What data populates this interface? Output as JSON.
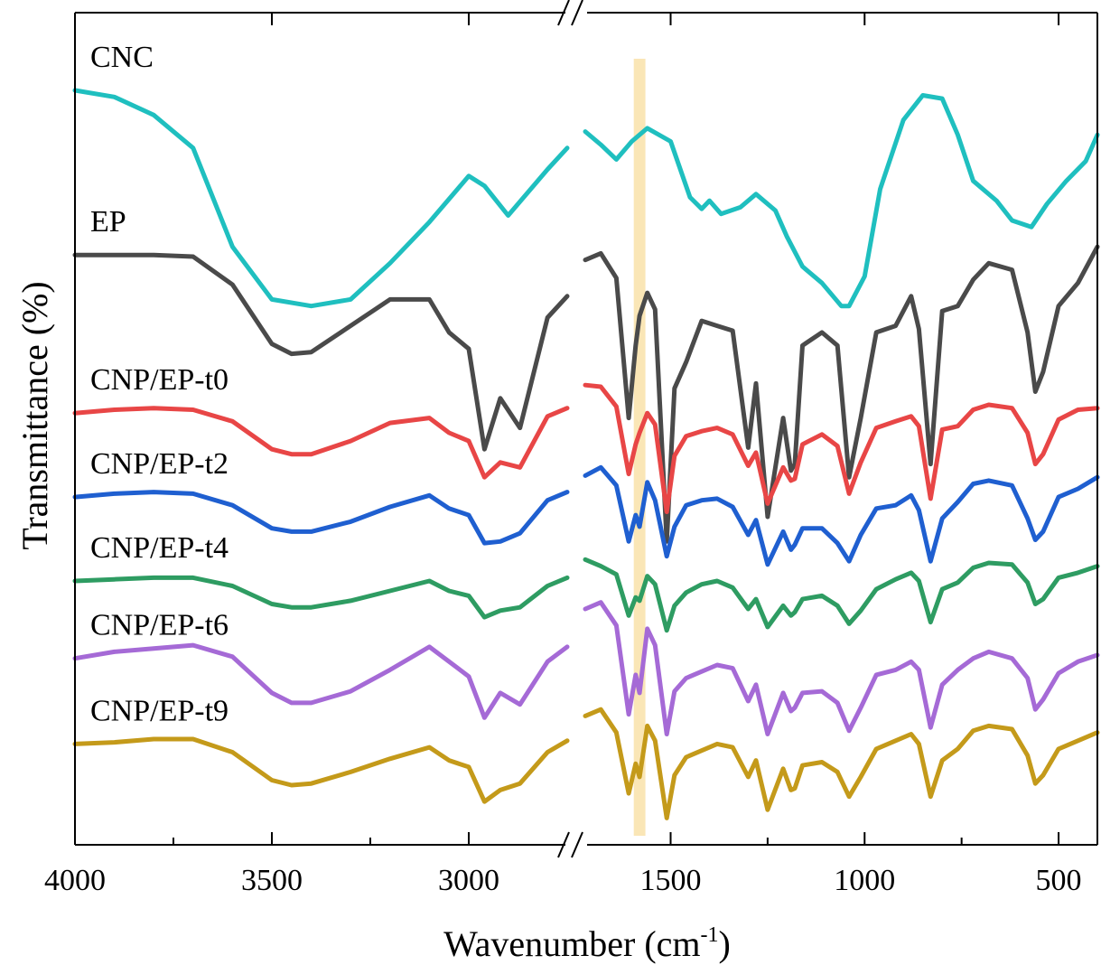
{
  "chart_data": {
    "type": "line",
    "xlabel": "Wavenumber (cm",
    "xlabel_sup": "-1",
    "xlabel_close": ")",
    "ylabel": "Transmittance (%)",
    "x_reversed": true,
    "x_break": [
      1750,
      1720
    ],
    "x_segments": [
      [
        4000,
        2750
      ],
      [
        1720,
        400
      ]
    ],
    "xlim": [
      4000,
      400
    ],
    "x_ticks": [
      4000,
      3500,
      3000,
      1500,
      1000,
      500
    ],
    "x_tick_labels": [
      "4000",
      "3500",
      "3000",
      "1500",
      "1000",
      "500"
    ],
    "y_tick_labels": false,
    "highlight_band": {
      "x_range": [
        1595,
        1565
      ],
      "color": "#f5d27a"
    },
    "grid": false,
    "legend": "none (series labelled above each curve)",
    "series": [
      {
        "name": "CNC",
        "color": "#1fbfbf",
        "left": {
          "x": [
            4000,
            3900,
            3800,
            3700,
            3600,
            3500,
            3400,
            3300,
            3200,
            3100,
            3000,
            2960,
            2900,
            2850,
            2800,
            2750
          ],
          "y": [
            100,
            99.6,
            98.5,
            96.5,
            90.5,
            87.3,
            86.9,
            87.3,
            89.5,
            92.0,
            94.8,
            94.2,
            92.4,
            93.8,
            95.2,
            96.5
          ]
        },
        "right": {
          "x": [
            1720,
            1680,
            1640,
            1600,
            1560,
            1500,
            1450,
            1420,
            1400,
            1370,
            1320,
            1280,
            1230,
            1200,
            1160,
            1110,
            1060,
            1040,
            1000,
            960,
            900,
            850,
            800,
            760,
            720,
            660,
            620,
            570,
            530,
            480,
            430,
            400
          ],
          "y": [
            97.5,
            96.7,
            95.8,
            96.9,
            97.7,
            96.9,
            93.5,
            92.8,
            93.3,
            92.5,
            92.9,
            93.7,
            92.7,
            91.1,
            89.3,
            88.3,
            86.9,
            86.9,
            88.7,
            94.0,
            98.2,
            99.7,
            99.5,
            97.3,
            94.5,
            93.3,
            92.1,
            91.7,
            93.1,
            94.5,
            95.7,
            97.3
          ]
        }
      },
      {
        "name": "EP",
        "color": "#4a4a4a",
        "left": {
          "x": [
            4000,
            3900,
            3800,
            3700,
            3600,
            3500,
            3450,
            3400,
            3300,
            3200,
            3100,
            3050,
            3000,
            2960,
            2920,
            2870,
            2800,
            2750
          ],
          "y": [
            90,
            90.0,
            90.0,
            89.9,
            88.2,
            84.6,
            84.0,
            84.1,
            85.7,
            87.3,
            87.3,
            85.3,
            84.3,
            78.2,
            81.3,
            79.5,
            86.2,
            87.5
          ]
        },
        "right": {
          "x": [
            1720,
            1680,
            1640,
            1608,
            1590,
            1580,
            1560,
            1540,
            1510,
            1490,
            1460,
            1420,
            1380,
            1340,
            1300,
            1280,
            1250,
            1210,
            1190,
            1180,
            1160,
            1110,
            1070,
            1040,
            1010,
            970,
            920,
            880,
            860,
            830,
            800,
            760,
            720,
            680,
            620,
            580,
            560,
            540,
            500,
            450,
            400
          ],
          "y": [
            89.7,
            90.1,
            88.6,
            80.1,
            84.5,
            86.3,
            87.7,
            86.7,
            72.6,
            81.9,
            83.5,
            86.0,
            85.7,
            85.4,
            78.3,
            82.2,
            74.1,
            80.1,
            76.9,
            77.3,
            84.5,
            85.3,
            84.5,
            76.5,
            80.1,
            85.3,
            85.7,
            87.5,
            85.5,
            77.3,
            86.6,
            86.9,
            88.5,
            89.5,
            89.1,
            85.3,
            81.7,
            82.9,
            86.9,
            88.3,
            90.5
          ]
        }
      },
      {
        "name": "CNP/EP-t0",
        "color": "#e84646",
        "left": {
          "x": [
            4000,
            3900,
            3800,
            3700,
            3600,
            3500,
            3450,
            3400,
            3300,
            3200,
            3100,
            3050,
            3000,
            2960,
            2920,
            2870,
            2800,
            2750
          ],
          "y": [
            80.4,
            80.6,
            80.7,
            80.6,
            79.9,
            78.2,
            77.9,
            77.9,
            78.7,
            79.8,
            80.1,
            79.2,
            78.7,
            76.5,
            77.4,
            77.1,
            80.2,
            80.7
          ]
        },
        "right": {
          "x": [
            1720,
            1680,
            1640,
            1608,
            1590,
            1580,
            1560,
            1540,
            1510,
            1490,
            1460,
            1420,
            1380,
            1340,
            1300,
            1280,
            1250,
            1210,
            1190,
            1180,
            1160,
            1110,
            1070,
            1040,
            1010,
            970,
            920,
            880,
            860,
            830,
            800,
            760,
            720,
            680,
            620,
            580,
            560,
            540,
            500,
            450,
            400
          ],
          "y": [
            82.1,
            82.0,
            80.8,
            76.7,
            78.5,
            79.2,
            80.4,
            79.7,
            74.4,
            77.8,
            79.0,
            79.3,
            79.5,
            79.1,
            77.2,
            78.0,
            74.9,
            77.1,
            76.3,
            76.4,
            78.5,
            79.1,
            78.4,
            75.5,
            77.4,
            79.5,
            79.9,
            80.2,
            79.6,
            75.2,
            79.4,
            79.6,
            80.6,
            80.9,
            80.7,
            79.2,
            77.3,
            77.9,
            80.0,
            80.6,
            80.7
          ]
        }
      },
      {
        "name": "CNP/EP-t2",
        "color": "#1f5fd0",
        "left": {
          "x": [
            4000,
            3900,
            3800,
            3700,
            3600,
            3500,
            3450,
            3400,
            3300,
            3200,
            3100,
            3050,
            3000,
            2960,
            2920,
            2870,
            2800,
            2750
          ],
          "y": [
            75.3,
            75.5,
            75.6,
            75.5,
            74.8,
            73.4,
            73.2,
            73.2,
            73.8,
            74.7,
            75.4,
            74.6,
            74.2,
            72.5,
            72.6,
            73.1,
            75.1,
            75.6
          ]
        },
        "right": {
          "x": [
            1720,
            1680,
            1640,
            1608,
            1590,
            1580,
            1560,
            1540,
            1510,
            1490,
            1460,
            1420,
            1380,
            1340,
            1300,
            1280,
            1250,
            1210,
            1190,
            1180,
            1160,
            1110,
            1070,
            1040,
            1010,
            970,
            920,
            880,
            860,
            830,
            800,
            760,
            720,
            680,
            620,
            580,
            560,
            540,
            500,
            450,
            400
          ],
          "y": [
            76.6,
            77.1,
            76.0,
            72.6,
            74.2,
            73.5,
            76.2,
            75.1,
            71.7,
            73.5,
            74.8,
            75.1,
            75.2,
            74.7,
            73.0,
            73.9,
            71.2,
            73.2,
            72.1,
            72.4,
            73.4,
            73.4,
            72.5,
            71.4,
            73.0,
            74.6,
            74.8,
            75.4,
            74.5,
            71.4,
            74.0,
            75.0,
            76.1,
            76.3,
            76.0,
            74.0,
            72.7,
            73.2,
            75.3,
            75.8,
            76.5
          ]
        }
      },
      {
        "name": "CNP/EP-t4",
        "color": "#2e9c62",
        "left": {
          "x": [
            4000,
            3900,
            3800,
            3700,
            3600,
            3500,
            3450,
            3400,
            3300,
            3200,
            3100,
            3050,
            3000,
            2960,
            2920,
            2870,
            2800,
            2750
          ],
          "y": [
            70.2,
            70.3,
            70.4,
            70.4,
            69.9,
            68.8,
            68.6,
            68.6,
            69.0,
            69.6,
            70.2,
            69.6,
            69.3,
            68.0,
            68.4,
            68.6,
            69.9,
            70.4
          ]
        },
        "right": {
          "x": [
            1720,
            1680,
            1640,
            1608,
            1590,
            1580,
            1560,
            1540,
            1510,
            1490,
            1460,
            1420,
            1380,
            1340,
            1300,
            1280,
            1250,
            1210,
            1190,
            1180,
            1160,
            1110,
            1070,
            1040,
            1010,
            970,
            920,
            880,
            860,
            830,
            800,
            760,
            720,
            680,
            620,
            580,
            560,
            540,
            500,
            450,
            400
          ],
          "y": [
            71.5,
            71.1,
            70.6,
            68.1,
            69.2,
            69.0,
            70.5,
            70.0,
            67.2,
            68.7,
            69.5,
            70.0,
            70.2,
            69.8,
            68.5,
            69.1,
            67.4,
            68.7,
            68.1,
            68.3,
            69.1,
            69.3,
            68.7,
            67.6,
            68.4,
            69.7,
            70.3,
            70.7,
            70.2,
            67.7,
            69.7,
            70.1,
            71.0,
            71.3,
            71.2,
            70.1,
            68.8,
            69.1,
            70.4,
            70.7,
            71.1
          ]
        }
      },
      {
        "name": "CNP/EP-t6",
        "color": "#a56ad6",
        "left": {
          "x": [
            4000,
            3900,
            3800,
            3700,
            3600,
            3500,
            3450,
            3400,
            3300,
            3200,
            3100,
            3050,
            3000,
            2960,
            2920,
            2870,
            2800,
            2750
          ],
          "y": [
            65.5,
            65.9,
            66.1,
            66.3,
            65.6,
            63.4,
            62.8,
            62.8,
            63.5,
            64.8,
            66.2,
            65.3,
            64.4,
            61.9,
            63.4,
            62.7,
            65.3,
            66.2
          ]
        },
        "right": {
          "x": [
            1720,
            1680,
            1640,
            1608,
            1590,
            1580,
            1560,
            1540,
            1510,
            1490,
            1460,
            1420,
            1380,
            1340,
            1300,
            1280,
            1250,
            1210,
            1190,
            1180,
            1160,
            1110,
            1070,
            1040,
            1010,
            970,
            920,
            880,
            860,
            830,
            800,
            760,
            720,
            680,
            620,
            580,
            560,
            540,
            500,
            450,
            400
          ],
          "y": [
            68.5,
            68.9,
            67.5,
            62.1,
            64.5,
            63.4,
            67.3,
            66.3,
            60.9,
            63.5,
            64.3,
            64.7,
            65.1,
            64.9,
            62.9,
            63.9,
            60.9,
            63.4,
            62.3,
            62.5,
            63.4,
            63.5,
            62.8,
            61.1,
            62.5,
            64.5,
            64.8,
            65.3,
            64.8,
            61.3,
            63.9,
            64.8,
            65.5,
            65.9,
            65.5,
            64.3,
            62.4,
            63.0,
            64.6,
            65.3,
            65.7
          ]
        }
      },
      {
        "name": "CNP/EP-t9",
        "color": "#c49a1a",
        "left": {
          "x": [
            4000,
            3900,
            3800,
            3700,
            3600,
            3500,
            3450,
            3400,
            3300,
            3200,
            3100,
            3050,
            3000,
            2960,
            2920,
            2870,
            2800,
            2750
          ],
          "y": [
            60.3,
            60.4,
            60.6,
            60.6,
            59.8,
            58.1,
            57.8,
            57.9,
            58.6,
            59.4,
            60.1,
            59.3,
            58.9,
            56.8,
            57.5,
            57.9,
            59.8,
            60.5
          ]
        },
        "right": {
          "x": [
            1720,
            1680,
            1640,
            1608,
            1590,
            1580,
            1560,
            1540,
            1510,
            1490,
            1460,
            1420,
            1380,
            1340,
            1300,
            1280,
            1250,
            1210,
            1190,
            1180,
            1160,
            1110,
            1070,
            1040,
            1010,
            970,
            920,
            880,
            860,
            830,
            800,
            760,
            720,
            680,
            620,
            580,
            560,
            540,
            500,
            450,
            400
          ],
          "y": [
            62.0,
            62.4,
            61.0,
            57.3,
            59.1,
            58.3,
            61.4,
            60.5,
            55.8,
            58.4,
            59.5,
            59.9,
            60.3,
            60.1,
            58.3,
            59.3,
            56.3,
            58.8,
            57.5,
            57.6,
            59.0,
            59.2,
            58.6,
            57.1,
            58.3,
            60.0,
            60.5,
            60.9,
            60.3,
            57.1,
            59.3,
            60.0,
            61.1,
            61.4,
            61.2,
            59.6,
            57.9,
            58.4,
            60.0,
            60.5,
            61.0
          ]
        }
      }
    ]
  }
}
